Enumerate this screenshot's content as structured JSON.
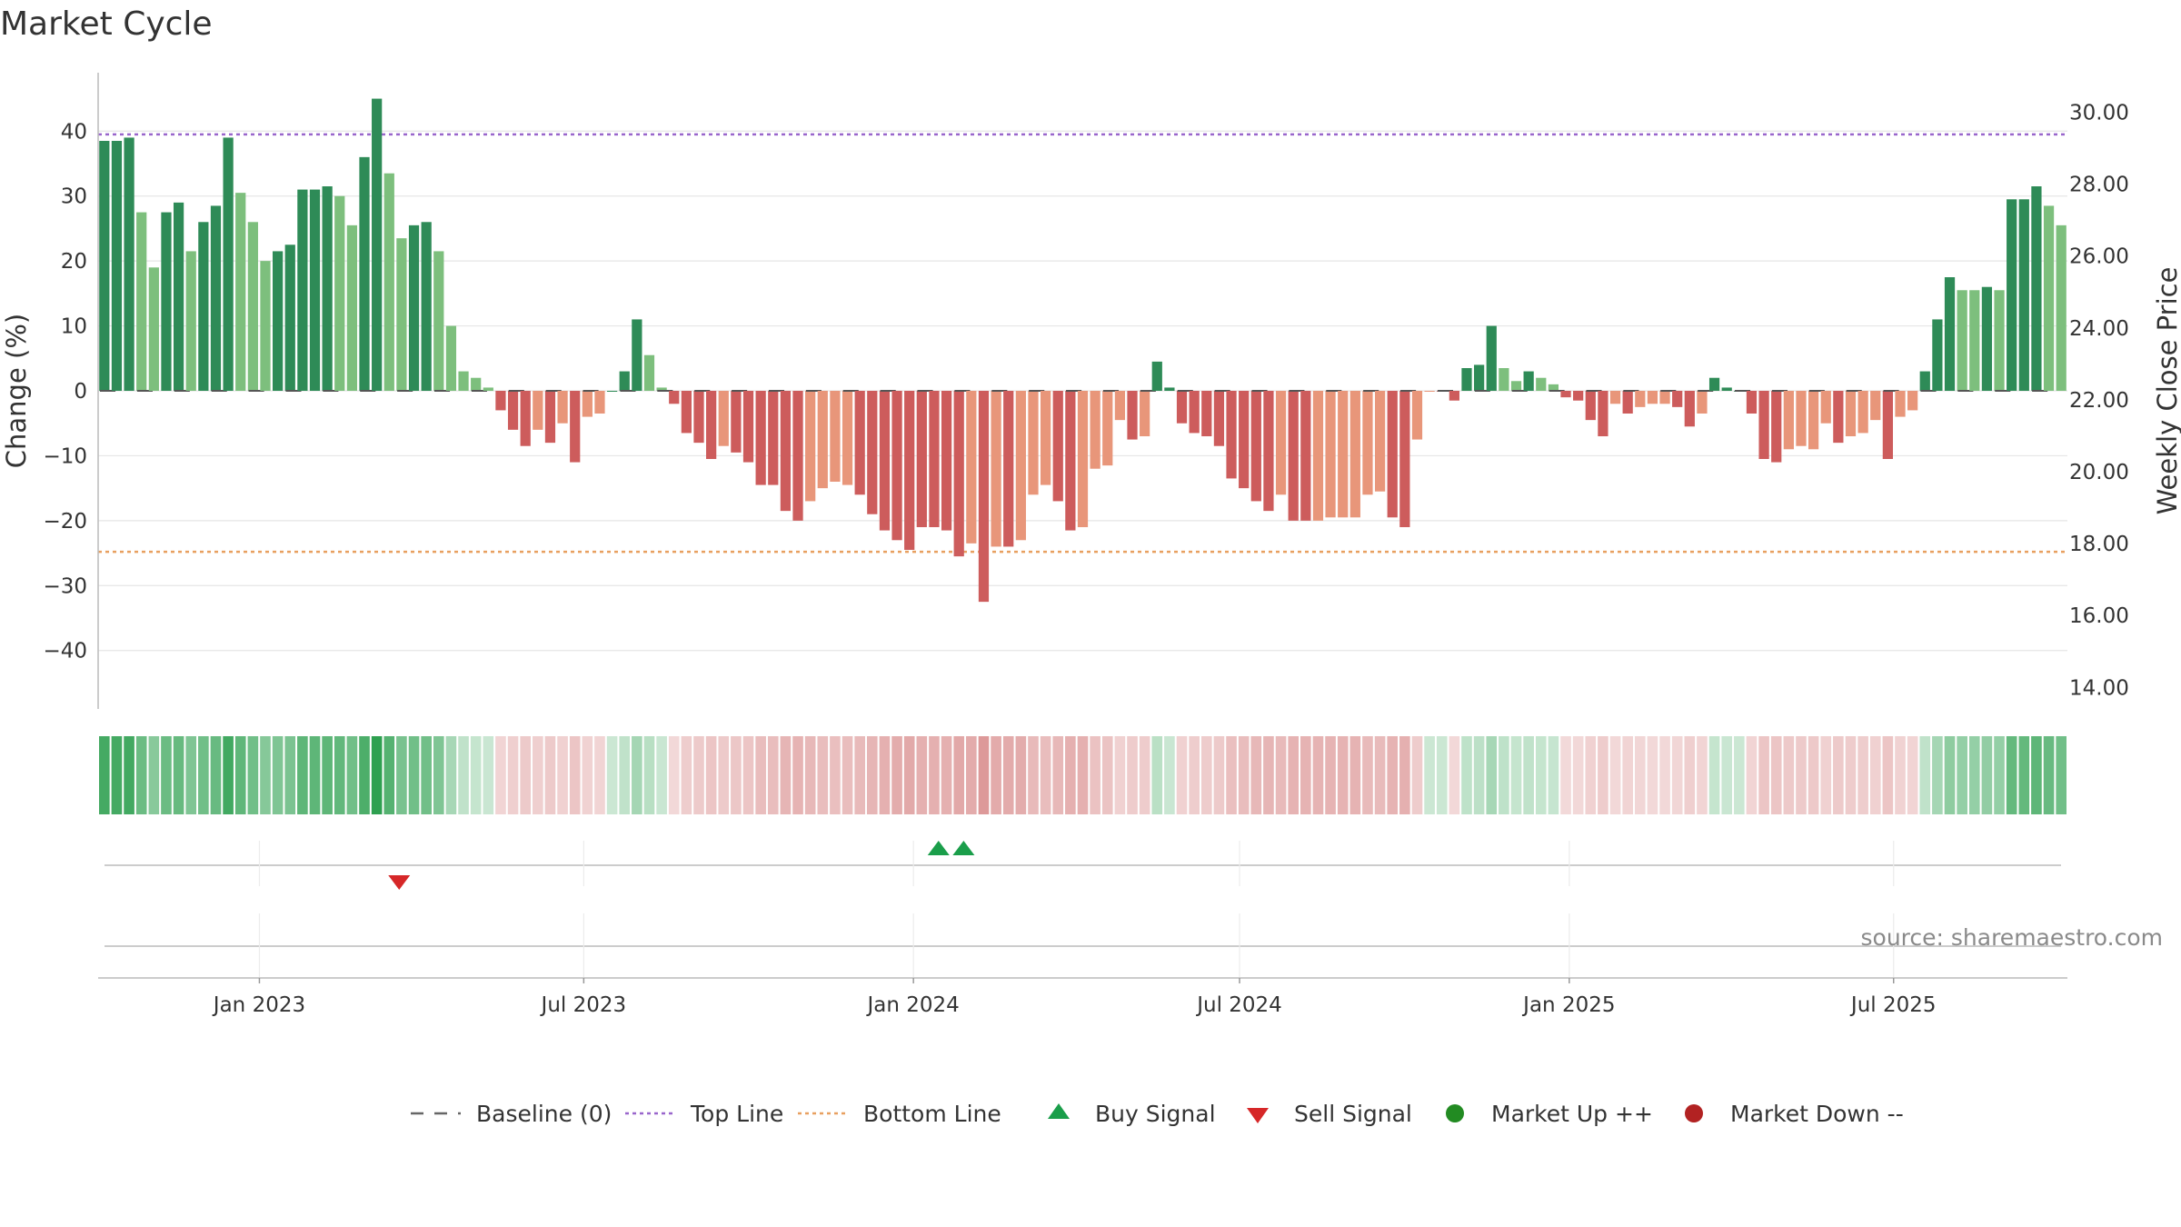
{
  "chart_data": {
    "type": "bar",
    "title": "Market Cycle",
    "ylabel": "Change (%)",
    "y2label": "Weekly Close Price",
    "ylim": [
      -49,
      49
    ],
    "yticks": [
      40,
      30,
      20,
      10,
      0,
      -10,
      -20,
      -30,
      -40
    ],
    "ytick_labels": [
      "40",
      "30",
      "20",
      "10",
      "0",
      "−10",
      "−20",
      "−30",
      "−40"
    ],
    "y2lim": [
      13.4,
      31.1
    ],
    "y2ticks": [
      30,
      28,
      26,
      24,
      22,
      20,
      18,
      16,
      14
    ],
    "y2tick_labels": [
      "30.00",
      "28.00",
      "26.00",
      "24.00",
      "22.00",
      "20.00",
      "18.00",
      "16.00",
      "14.00"
    ],
    "top_line": 39.5,
    "bottom_line": -24.8,
    "x_start": "2022-10-03",
    "x_end": "2025-10-06",
    "xtick_dates": [
      "2023-01-01",
      "2023-07-01",
      "2024-01-01",
      "2024-07-01",
      "2025-01-01",
      "2025-07-01"
    ],
    "xtick_labels": [
      "Jan 2023",
      "Jul 2023",
      "Jan 2024",
      "Jul 2024",
      "Jan 2025",
      "Jul 2025"
    ],
    "first_week": "2022-10-03",
    "weekly_change": [
      38.5,
      38.5,
      39,
      27.5,
      19,
      27.5,
      29,
      21.5,
      26,
      28.5,
      39,
      30.5,
      26,
      20,
      21.5,
      22.5,
      31,
      31,
      31.5,
      30,
      25.5,
      36,
      45,
      33.5,
      23.5,
      25.5,
      26,
      21.5,
      10,
      3,
      2,
      0.5,
      -3,
      -6,
      -8.5,
      -6,
      -8,
      -5,
      -11,
      -4,
      -3.5,
      0,
      3,
      11,
      5.5,
      0.5,
      -2,
      -6.5,
      -8,
      -10.5,
      -8.5,
      -9.5,
      -11,
      -14.5,
      -14.5,
      -18.5,
      -20,
      -17,
      -15,
      -14,
      -14.5,
      -16,
      -19,
      -21.5,
      -23,
      -24.5,
      -21,
      -21,
      -21.5,
      -25.5,
      -23.5,
      -32.5,
      -24,
      -24,
      -23,
      -16,
      -14.5,
      -17,
      -21.5,
      -21,
      -12,
      -11.5,
      -4.5,
      -7.5,
      -7,
      4.5,
      0.5,
      -5,
      -6.5,
      -7,
      -8.5,
      -13.5,
      -15,
      -17,
      -18.5,
      -16,
      -20,
      -20,
      -20,
      -19.5,
      -19.5,
      -19.5,
      -16,
      -15.5,
      -19.5,
      -21,
      -7.5,
      0,
      0,
      -1.5,
      3.5,
      4,
      10,
      3.5,
      1.5,
      3,
      2,
      1,
      -1,
      -1.5,
      -4.5,
      -7,
      -2,
      -3.5,
      -2.5,
      -2,
      -2,
      -2.5,
      -5.5,
      -3.5,
      2,
      0.5,
      0,
      -3.5,
      -10.5,
      -11,
      -9,
      -8.5,
      -9,
      -5,
      -8,
      -7,
      -6.5,
      -4.5,
      -10.5,
      -4,
      -3,
      3,
      11,
      17.5,
      15.5,
      15.5,
      16,
      15.5,
      29.5,
      29.5,
      31.5,
      28.5,
      25.5
    ],
    "bar_colors": [
      "#2e8b57",
      "#2e8b57",
      "#2e8b57",
      "#7dbf7d",
      "#7dbf7d",
      "#2e8b57",
      "#2e8b57",
      "#7dbf7d",
      "#2e8b57",
      "#2e8b57",
      "#2e8b57",
      "#7dbf7d",
      "#7dbf7d",
      "#7dbf7d",
      "#2e8b57",
      "#2e8b57",
      "#2e8b57",
      "#2e8b57",
      "#2e8b57",
      "#7dbf7d",
      "#7dbf7d",
      "#2e8b57",
      "#2e8b57",
      "#7dbf7d",
      "#7dbf7d",
      "#2e8b57",
      "#2e8b57",
      "#7dbf7d",
      "#7dbf7d",
      "#7dbf7d",
      "#7dbf7d",
      "#7dbf7d",
      "#cd5c5c",
      "#cd5c5c",
      "#cd5c5c",
      "#e8967a",
      "#cd5c5c",
      "#e8967a",
      "#cd5c5c",
      "#e8967a",
      "#e8967a",
      "#2e8b57",
      "#2e8b57",
      "#2e8b57",
      "#7dbf7d",
      "#7dbf7d",
      "#cd5c5c",
      "#cd5c5c",
      "#cd5c5c",
      "#cd5c5c",
      "#e8967a",
      "#cd5c5c",
      "#cd5c5c",
      "#cd5c5c",
      "#cd5c5c",
      "#cd5c5c",
      "#cd5c5c",
      "#e8967a",
      "#e8967a",
      "#e8967a",
      "#e8967a",
      "#cd5c5c",
      "#cd5c5c",
      "#cd5c5c",
      "#cd5c5c",
      "#cd5c5c",
      "#cd5c5c",
      "#cd5c5c",
      "#cd5c5c",
      "#cd5c5c",
      "#e8967a",
      "#cd5c5c",
      "#e8967a",
      "#cd5c5c",
      "#e8967a",
      "#e8967a",
      "#e8967a",
      "#cd5c5c",
      "#cd5c5c",
      "#e8967a",
      "#e8967a",
      "#e8967a",
      "#e8967a",
      "#cd5c5c",
      "#e8967a",
      "#2e8b57",
      "#2e8b57",
      "#cd5c5c",
      "#cd5c5c",
      "#cd5c5c",
      "#cd5c5c",
      "#cd5c5c",
      "#cd5c5c",
      "#cd5c5c",
      "#cd5c5c",
      "#e8967a",
      "#cd5c5c",
      "#cd5c5c",
      "#e8967a",
      "#e8967a",
      "#e8967a",
      "#e8967a",
      "#e8967a",
      "#e8967a",
      "#cd5c5c",
      "#cd5c5c",
      "#e8967a",
      "#e8967a",
      "#cd5c5c",
      "#cd5c5c",
      "#2e8b57",
      "#2e8b57",
      "#2e8b57",
      "#7dbf7d",
      "#7dbf7d",
      "#2e8b57",
      "#7dbf7d",
      "#7dbf7d",
      "#cd5c5c",
      "#cd5c5c",
      "#cd5c5c",
      "#cd5c5c",
      "#e8967a",
      "#cd5c5c",
      "#e8967a",
      "#e8967a",
      "#e8967a",
      "#cd5c5c",
      "#cd5c5c",
      "#e8967a",
      "#2e8b57",
      "#2e8b57",
      "#2e8b57",
      "#cd5c5c",
      "#cd5c5c",
      "#cd5c5c",
      "#e8967a",
      "#e8967a",
      "#e8967a",
      "#e8967a",
      "#cd5c5c",
      "#e8967a",
      "#e8967a",
      "#e8967a",
      "#cd5c5c",
      "#e8967a",
      "#e8967a",
      "#2e8b57",
      "#2e8b57",
      "#2e8b57",
      "#7dbf7d",
      "#7dbf7d",
      "#2e8b57",
      "#7dbf7d",
      "#2e8b57",
      "#2e8b57",
      "#2e8b57",
      "#7dbf7d",
      "#7dbf7d"
    ],
    "signals": [
      {
        "type": "sell",
        "date": "2023-03-20"
      },
      {
        "type": "buy",
        "date": "2024-01-15"
      },
      {
        "type": "buy",
        "date": "2024-01-29"
      }
    ],
    "legend_position": "bottom-center",
    "legend": [
      {
        "label": "Baseline (0)",
        "kind": "dash",
        "color": "#666666"
      },
      {
        "label": "Top Line",
        "kind": "dotted",
        "color": "#9966cc"
      },
      {
        "label": "Bottom Line",
        "kind": "dotted",
        "color": "#e8a060"
      },
      {
        "label": "Buy Signal",
        "kind": "tri-up",
        "color": "#1a9e4a"
      },
      {
        "label": "Sell Signal",
        "kind": "tri-down",
        "color": "#d62728"
      },
      {
        "label": "Market Up ++",
        "kind": "dot",
        "color": "#228b22"
      },
      {
        "label": "Market Down --",
        "kind": "dot",
        "color": "#b22222"
      }
    ],
    "source": "source: sharemaestro.com",
    "grid": true
  },
  "colors": {
    "strong_up": "#2e8b57",
    "weak_up": "#7dbf7d",
    "strong_down": "#cd5c5c",
    "weak_down": "#e8967a",
    "top_line": "#9966cc",
    "bottom_line": "#e8a060",
    "grid": "#e6e6e6"
  }
}
